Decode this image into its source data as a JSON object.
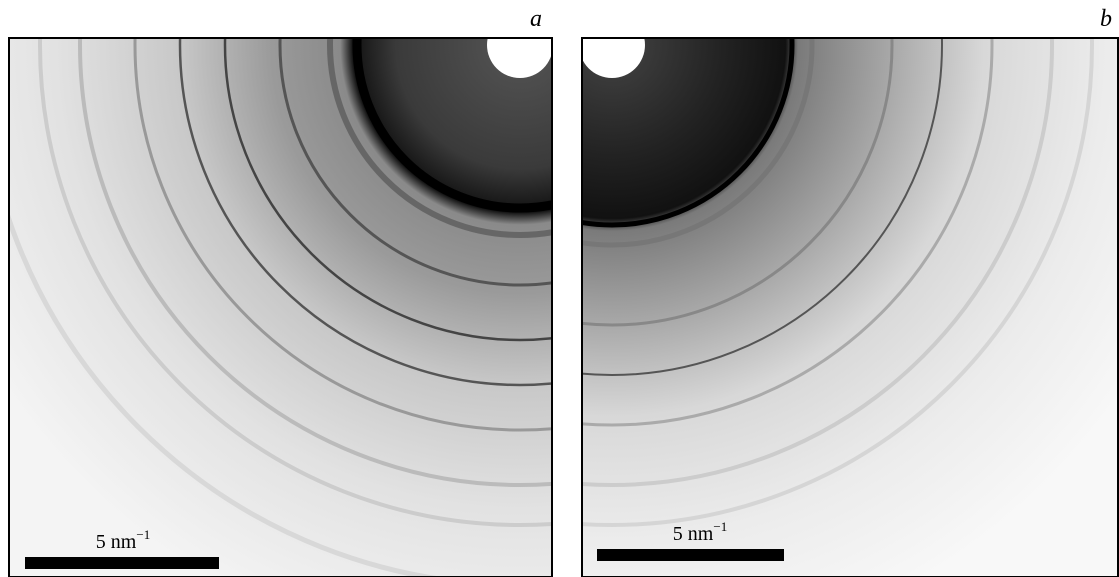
{
  "panels": [
    {
      "label": "a",
      "scale_bar": {
        "text": "5 nm",
        "superscript": "−1"
      }
    },
    {
      "label": "b",
      "scale_bar": {
        "text": "5 nm",
        "superscript": "−1"
      }
    }
  ]
}
